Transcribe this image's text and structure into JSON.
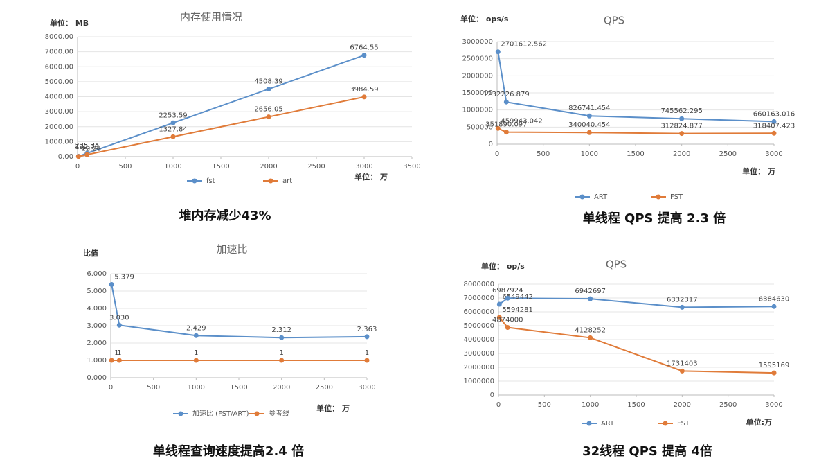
{
  "chart_data": [
    {
      "type": "line",
      "title": "内存使用情况",
      "y_unit": "单位： MB",
      "x_unit": "单位： 万",
      "caption": "堆内存减少43%",
      "x": [
        10,
        100,
        1000,
        2000,
        3000
      ],
      "series": [
        {
          "name": "fst",
          "color": "#5b8fc9",
          "values": [
            22.56,
            225.34,
            2253.59,
            4508.39,
            6764.55
          ]
        },
        {
          "name": "art",
          "color": "#e07b39",
          "values": [
            13.27,
            132.78,
            1327.84,
            2656.05,
            3984.59
          ]
        }
      ],
      "xlim": [
        0,
        3500
      ],
      "ylim": [
        0,
        8000
      ],
      "xticks": [
        0,
        500,
        1000,
        1500,
        2000,
        2500,
        3000,
        3500
      ],
      "yticks": [
        {
          "value": 0,
          "label": "0.00"
        },
        {
          "value": 1000,
          "label": "1000.00"
        },
        {
          "value": 2000,
          "label": "2000.00"
        },
        {
          "value": 3000,
          "label": "3000.00"
        },
        {
          "value": 4000,
          "label": "4000.00"
        },
        {
          "value": 5000,
          "label": "5000.00"
        },
        {
          "value": 6000,
          "label": "6000.00"
        },
        {
          "value": 7000,
          "label": "7000.00"
        },
        {
          "value": 8000,
          "label": "8000.00"
        }
      ],
      "grid": true,
      "legend": "bottom"
    },
    {
      "type": "line",
      "title": "QPS",
      "y_unit": "单位： ops/s",
      "x_unit": "单位： 万",
      "caption": "单线程 QPS 提高 2.3 倍",
      "x": [
        10,
        100,
        1000,
        2000,
        3000
      ],
      "series": [
        {
          "name": "ART",
          "color": "#5b8fc9",
          "values": [
            2701612.562,
            1232226.879,
            826741.454,
            745562.295,
            660163.016
          ]
        },
        {
          "name": "FST",
          "color": "#e07b39",
          "values": [
            459943.042,
            351890.097,
            340040.454,
            312824.877,
            318407.423
          ]
        }
      ],
      "xlim": [
        0,
        3000
      ],
      "ylim": [
        0,
        3000000
      ],
      "xticks": [
        0,
        500,
        1000,
        1500,
        2000,
        2500,
        3000
      ],
      "yticks": [
        0,
        500000,
        1000000,
        1500000,
        2000000,
        2500000,
        3000000
      ],
      "grid": true,
      "legend": "bottom"
    },
    {
      "type": "line",
      "title": "加速比",
      "y_unit": "比值",
      "x_unit": "单位： 万",
      "caption": "单线程查询速度提高2.4 倍",
      "x": [
        10,
        100,
        1000,
        2000,
        3000
      ],
      "series": [
        {
          "name": "加速比 (FST/ART)",
          "color": "#5b8fc9",
          "values": [
            5.379,
            3.03,
            2.429,
            2.312,
            2.363
          ],
          "value_labels": [
            "5.379",
            "3.030",
            "2.429",
            "2.312",
            "2.363"
          ]
        },
        {
          "name": "参考线",
          "color": "#e07b39",
          "values": [
            1,
            1,
            1,
            1,
            1
          ]
        }
      ],
      "xlim": [
        0,
        3000
      ],
      "ylim": [
        0,
        6
      ],
      "xticks": [
        0,
        500,
        1000,
        1500,
        2000,
        2500,
        3000
      ],
      "yticks": [
        {
          "value": 0,
          "label": "0.000"
        },
        {
          "value": 1,
          "label": "1.000"
        },
        {
          "value": 2,
          "label": "2.000"
        },
        {
          "value": 3,
          "label": "3.000"
        },
        {
          "value": 4,
          "label": "4.000"
        },
        {
          "value": 5,
          "label": "5.000"
        },
        {
          "value": 6,
          "label": "6.000"
        }
      ],
      "grid": true,
      "legend": "bottom"
    },
    {
      "type": "line",
      "title": "QPS",
      "y_unit": "单位： op/s",
      "x_unit": "单位:万",
      "caption": "32线程 QPS 提高 4倍",
      "x": [
        10,
        100,
        1000,
        2000,
        3000
      ],
      "series": [
        {
          "name": "ART",
          "color": "#5b8fc9",
          "values": [
            6549442,
            6987924,
            6942697,
            6332317,
            6384630
          ]
        },
        {
          "name": "FST",
          "color": "#e07b39",
          "values": [
            5594281,
            4874000,
            4128252,
            1731403,
            1595169
          ]
        }
      ],
      "xlim": [
        0,
        3000
      ],
      "ylim": [
        0,
        8000000
      ],
      "xticks": [
        0,
        500,
        1000,
        1500,
        2000,
        2500,
        3000
      ],
      "yticks": [
        0,
        1000000,
        2000000,
        3000000,
        4000000,
        5000000,
        6000000,
        7000000,
        8000000
      ],
      "grid": true,
      "legend": "bottom"
    }
  ]
}
